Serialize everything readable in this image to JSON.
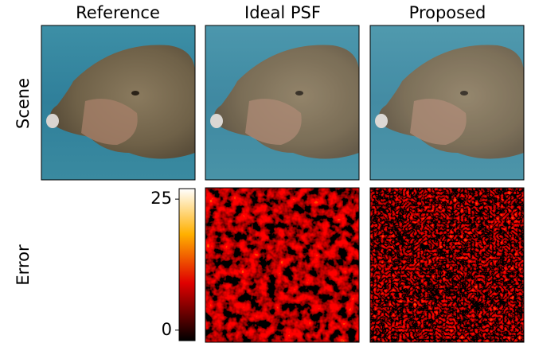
{
  "columns": [
    "Reference",
    "Ideal PSF",
    "Proposed"
  ],
  "rows": [
    "Scene",
    "Error"
  ],
  "colorbar": {
    "lim": [
      -2,
      27
    ],
    "ticks": [
      0,
      25
    ]
  }
}
